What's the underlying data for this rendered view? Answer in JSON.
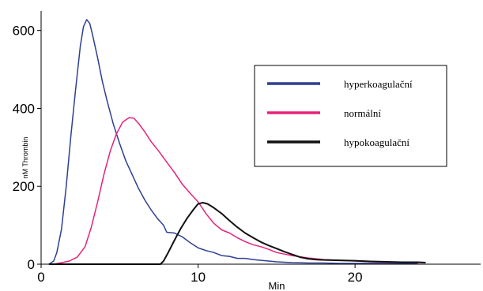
{
  "chart_data": {
    "type": "line",
    "xlabel": "Min",
    "ylabel": "nM Thrombin",
    "xlim": [
      0,
      28
    ],
    "ylim": [
      0,
      650
    ],
    "x_ticks": [
      0,
      10,
      20
    ],
    "y_ticks": [
      0,
      200,
      400,
      600
    ],
    "legend_position": "right",
    "series": [
      {
        "name": "hyperkoagulační",
        "color": "#2e3f94",
        "points": [
          [
            0.5,
            0
          ],
          [
            0.8,
            8
          ],
          [
            1.0,
            30
          ],
          [
            1.3,
            90
          ],
          [
            1.6,
            200
          ],
          [
            1.9,
            330
          ],
          [
            2.2,
            450
          ],
          [
            2.5,
            560
          ],
          [
            2.7,
            610
          ],
          [
            2.9,
            628
          ],
          [
            3.1,
            618
          ],
          [
            3.3,
            585
          ],
          [
            3.6,
            530
          ],
          [
            3.9,
            470
          ],
          [
            4.2,
            420
          ],
          [
            4.6,
            360
          ],
          [
            5.0,
            310
          ],
          [
            5.4,
            265
          ],
          [
            5.8,
            230
          ],
          [
            6.2,
            195
          ],
          [
            6.6,
            165
          ],
          [
            7.0,
            140
          ],
          [
            7.4,
            118
          ],
          [
            7.8,
            100
          ],
          [
            8.0,
            82
          ],
          [
            8.5,
            80
          ],
          [
            9.0,
            70
          ],
          [
            9.5,
            55
          ],
          [
            10.0,
            42
          ],
          [
            10.5,
            35
          ],
          [
            11.0,
            30
          ],
          [
            11.5,
            22
          ],
          [
            12.0,
            20
          ],
          [
            12.5,
            15
          ],
          [
            13.0,
            15
          ],
          [
            13.5,
            12
          ],
          [
            14.0,
            10
          ],
          [
            14.5,
            8
          ],
          [
            15.0,
            6
          ],
          [
            15.5,
            5
          ],
          [
            16.0,
            4
          ],
          [
            17.0,
            3
          ],
          [
            18.0,
            3
          ],
          [
            19.0,
            2
          ],
          [
            20.0,
            2
          ],
          [
            22.0,
            2
          ],
          [
            24.0,
            2
          ]
        ]
      },
      {
        "name": "normální",
        "color": "#e8217b",
        "points": [
          [
            0.8,
            0
          ],
          [
            1.2,
            3
          ],
          [
            1.8,
            8
          ],
          [
            2.3,
            18
          ],
          [
            2.8,
            45
          ],
          [
            3.2,
            95
          ],
          [
            3.6,
            160
          ],
          [
            4.0,
            230
          ],
          [
            4.4,
            290
          ],
          [
            4.8,
            335
          ],
          [
            5.2,
            365
          ],
          [
            5.6,
            376
          ],
          [
            5.9,
            375
          ],
          [
            6.2,
            362
          ],
          [
            6.6,
            340
          ],
          [
            7.0,
            315
          ],
          [
            7.5,
            290
          ],
          [
            8.0,
            262
          ],
          [
            8.5,
            235
          ],
          [
            9.0,
            205
          ],
          [
            9.5,
            182
          ],
          [
            10.0,
            160
          ],
          [
            10.5,
            130
          ],
          [
            11.0,
            105
          ],
          [
            11.5,
            88
          ],
          [
            12.0,
            80
          ],
          [
            12.5,
            68
          ],
          [
            13.0,
            58
          ],
          [
            13.5,
            50
          ],
          [
            14.0,
            45
          ],
          [
            14.5,
            38
          ],
          [
            15.0,
            30
          ],
          [
            15.5,
            26
          ],
          [
            16.0,
            22
          ],
          [
            17.0,
            16
          ],
          [
            18.0,
            12
          ],
          [
            19.0,
            10
          ],
          [
            20.0,
            8
          ],
          [
            21.0,
            6
          ],
          [
            22.0,
            5
          ],
          [
            23.0,
            5
          ],
          [
            24.0,
            4
          ],
          [
            24.5,
            4
          ]
        ]
      },
      {
        "name": "hypokoagulační",
        "color": "#111111",
        "points": [
          [
            0.5,
            0
          ],
          [
            7.6,
            0
          ],
          [
            7.8,
            8
          ],
          [
            8.1,
            30
          ],
          [
            8.5,
            62
          ],
          [
            8.9,
            92
          ],
          [
            9.3,
            118
          ],
          [
            9.7,
            140
          ],
          [
            10.0,
            155
          ],
          [
            10.3,
            158
          ],
          [
            10.6,
            155
          ],
          [
            11.0,
            145
          ],
          [
            11.5,
            130
          ],
          [
            12.0,
            112
          ],
          [
            12.5,
            95
          ],
          [
            13.0,
            80
          ],
          [
            13.5,
            68
          ],
          [
            14.0,
            57
          ],
          [
            14.5,
            48
          ],
          [
            15.0,
            40
          ],
          [
            15.5,
            32
          ],
          [
            16.0,
            25
          ],
          [
            16.5,
            18
          ],
          [
            17.0,
            14
          ],
          [
            17.5,
            12
          ],
          [
            18.0,
            11
          ],
          [
            19.0,
            10
          ],
          [
            20.0,
            9
          ],
          [
            21.0,
            7
          ],
          [
            22.0,
            6
          ],
          [
            23.0,
            5
          ],
          [
            24.0,
            5
          ],
          [
            24.5,
            4
          ]
        ]
      }
    ]
  }
}
